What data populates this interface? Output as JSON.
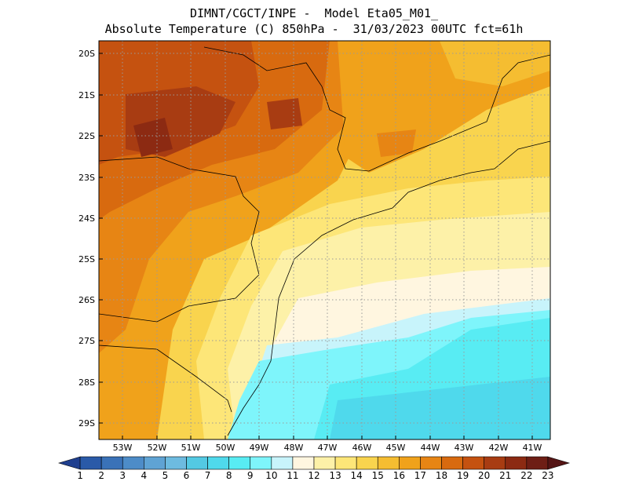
{
  "header": {
    "line1": "DIMNT/CGCT/INPE -  Model Eta05_M01_",
    "line2": "Absolute Temperature (C) 850hPa -  31/03/2023 00UTC fct=61h"
  },
  "map": {
    "lat_labels": [
      "20S",
      "21S",
      "22S",
      "23S",
      "24S",
      "25S",
      "26S",
      "27S",
      "28S",
      "29S"
    ],
    "lon_labels": [
      "53W",
      "52W",
      "51W",
      "50W",
      "49W",
      "48W",
      "47W",
      "46W",
      "45W",
      "44W",
      "43W",
      "42W",
      "41W"
    ]
  },
  "colorbar": {
    "levels": [
      "1",
      "2",
      "3",
      "4",
      "5",
      "6",
      "7",
      "8",
      "9",
      "10",
      "11",
      "12",
      "13",
      "14",
      "15",
      "16",
      "17",
      "18",
      "19",
      "20",
      "21",
      "22",
      "23"
    ],
    "colors": [
      "#1f3f8f",
      "#2a5aa8",
      "#3a72b8",
      "#4d8cc8",
      "#5fa3d4",
      "#6dbbe0",
      "#53c9e3",
      "#4fd9ec",
      "#58ecf3",
      "#7ef5fb",
      "#c8f4fb",
      "#fff6e0",
      "#fdf1a8",
      "#fde678",
      "#f9d44e",
      "#f5bd31",
      "#f0a21b",
      "#e78514",
      "#d86a0f",
      "#c55210",
      "#a83c12",
      "#8c2a12",
      "#6e1e15",
      "#551515"
    ]
  }
}
